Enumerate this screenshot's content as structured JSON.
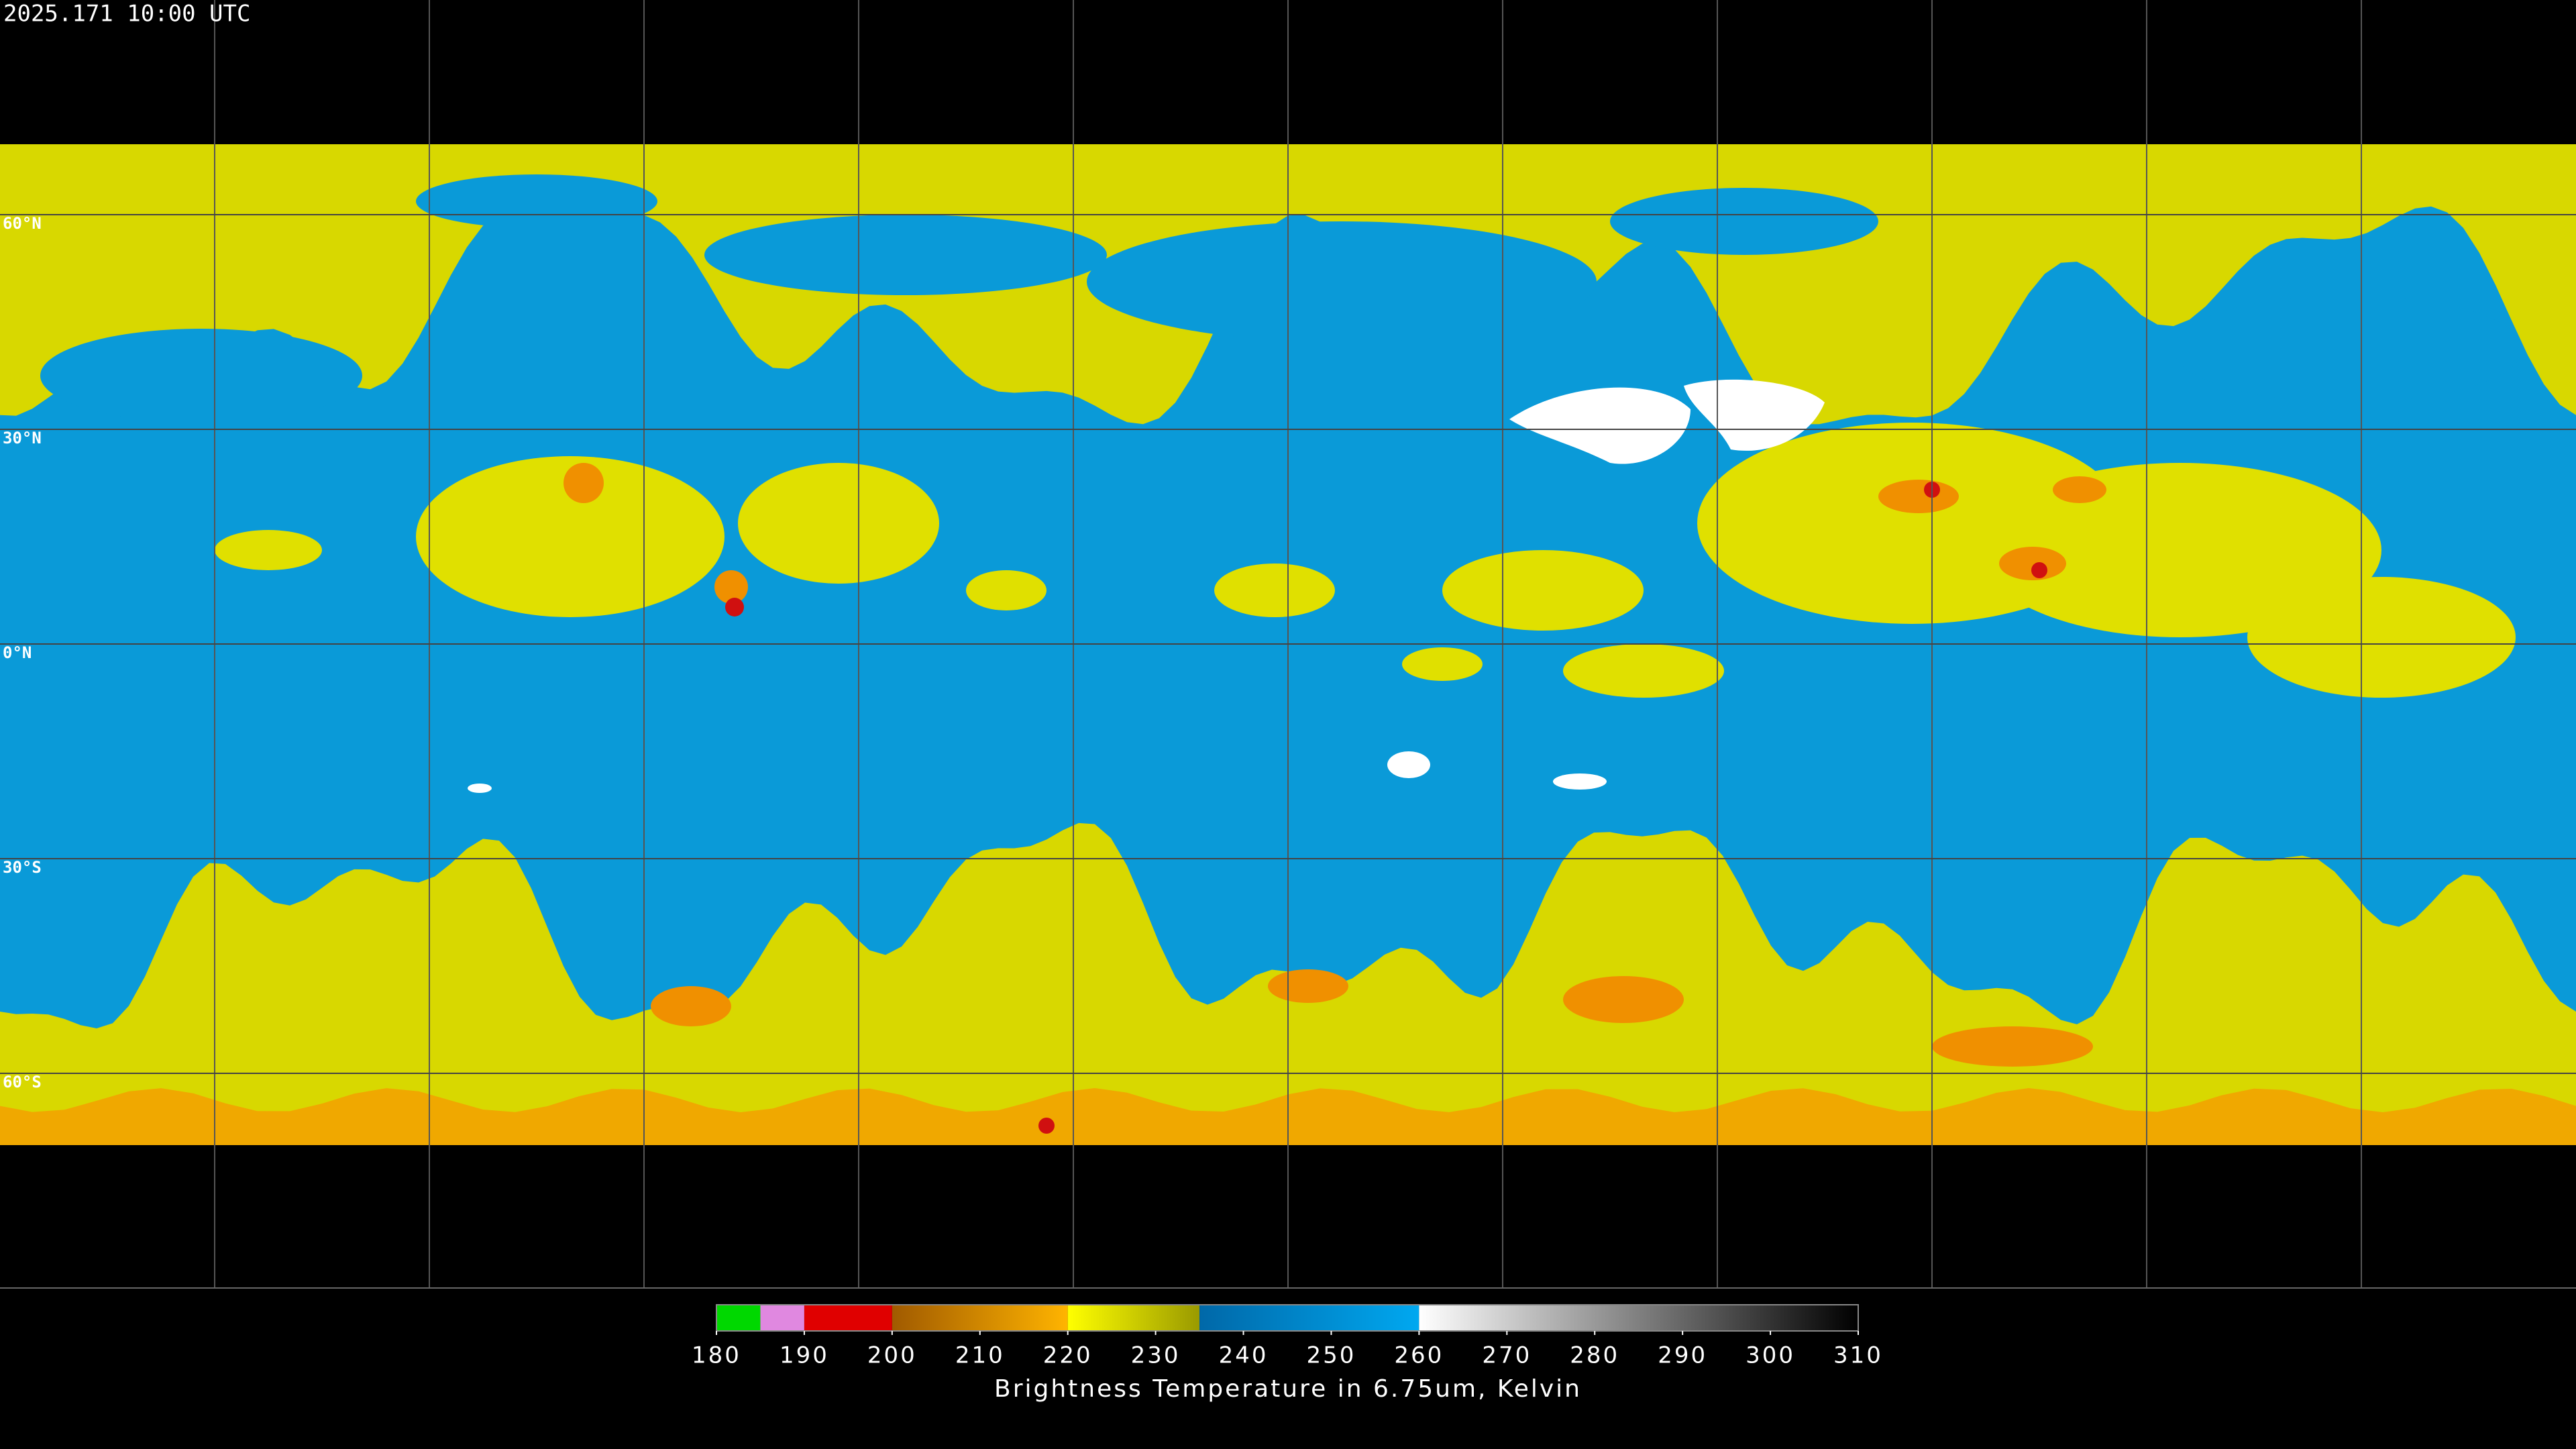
{
  "header": {
    "timestamp": "2025.171 10:00 UTC"
  },
  "map": {
    "lat_ticks": [
      {
        "value": 60,
        "label": "60°N"
      },
      {
        "value": 30,
        "label": "30°N"
      },
      {
        "value": 0,
        "label": "0°N"
      },
      {
        "value": -30,
        "label": "30°S"
      },
      {
        "value": -60,
        "label": "60°S"
      }
    ]
  },
  "colorbar": {
    "title": "Brightness Temperature in 6.75um, Kelvin",
    "range": [
      180,
      310
    ],
    "ticks": [
      180,
      190,
      200,
      210,
      220,
      230,
      240,
      250,
      260,
      270,
      280,
      290,
      300,
      310
    ],
    "segments": [
      {
        "from": 180,
        "to": 185,
        "colors": [
          "#00d800",
          "#00d800"
        ]
      },
      {
        "from": 185,
        "to": 190,
        "colors": [
          "#e088e0",
          "#e088e0"
        ]
      },
      {
        "from": 190,
        "to": 200,
        "colors": [
          "#e00000",
          "#e00000"
        ]
      },
      {
        "from": 200,
        "to": 220,
        "colors": [
          "#a05a00",
          "#ffb400"
        ]
      },
      {
        "from": 220,
        "to": 235,
        "colors": [
          "#ffff00",
          "#9a9a00"
        ]
      },
      {
        "from": 235,
        "to": 260,
        "colors": [
          "#0068a8",
          "#00a8f0"
        ]
      },
      {
        "from": 260,
        "to": 310,
        "colors": [
          "#ffffff",
          "#000000"
        ]
      }
    ]
  }
}
